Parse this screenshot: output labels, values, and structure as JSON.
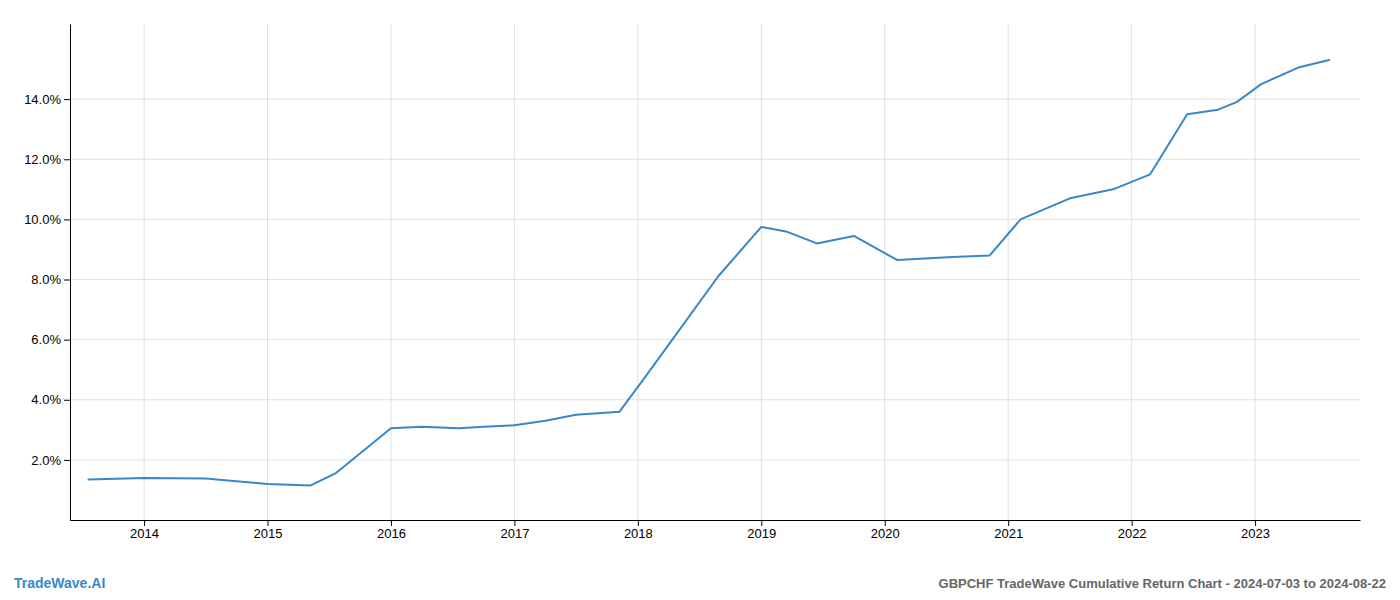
{
  "chart_data": {
    "type": "line",
    "x": [
      2013.55,
      2014.0,
      2014.5,
      2015.0,
      2015.35,
      2015.55,
      2016.0,
      2016.25,
      2016.55,
      2016.75,
      2017.0,
      2017.25,
      2017.5,
      2017.85,
      2018.05,
      2018.35,
      2018.65,
      2019.0,
      2019.2,
      2019.45,
      2019.75,
      2020.1,
      2020.55,
      2020.85,
      2021.1,
      2021.5,
      2021.85,
      2022.15,
      2022.45,
      2022.7,
      2022.85,
      2023.05,
      2023.35,
      2023.6
    ],
    "values": [
      1.35,
      1.4,
      1.38,
      1.2,
      1.15,
      1.55,
      3.05,
      3.1,
      3.05,
      3.1,
      3.15,
      3.3,
      3.5,
      3.6,
      4.7,
      6.4,
      8.1,
      9.75,
      9.6,
      9.2,
      9.45,
      8.65,
      8.75,
      8.8,
      10.0,
      10.7,
      11.0,
      11.5,
      13.5,
      13.65,
      13.9,
      14.5,
      15.05,
      15.3
    ],
    "color": "#3a87c8",
    "xlim": [
      2013.4,
      2023.85
    ],
    "xticks": [
      2014,
      2015,
      2016,
      2017,
      2018,
      2019,
      2020,
      2021,
      2022,
      2023
    ],
    "ylim": [
      0.0,
      16.5
    ],
    "yticks": [
      {
        "value": 2.0,
        "label": "2.0%"
      },
      {
        "value": 4.0,
        "label": "4.0%"
      },
      {
        "value": 6.0,
        "label": "6.0%"
      },
      {
        "value": 8.0,
        "label": "8.0%"
      },
      {
        "value": 10.0,
        "label": "10.0%"
      },
      {
        "value": 12.0,
        "label": "12.0%"
      },
      {
        "value": 14.0,
        "label": "14.0%"
      }
    ],
    "grid": true,
    "annotations": [
      {
        "text": "TradeWave.AI",
        "color": "#3a87c8"
      },
      {
        "text": "GBPCHF TradeWave Cumulative Return Chart - 2024-07-03 to 2024-08-22",
        "color": "#666666"
      }
    ]
  }
}
